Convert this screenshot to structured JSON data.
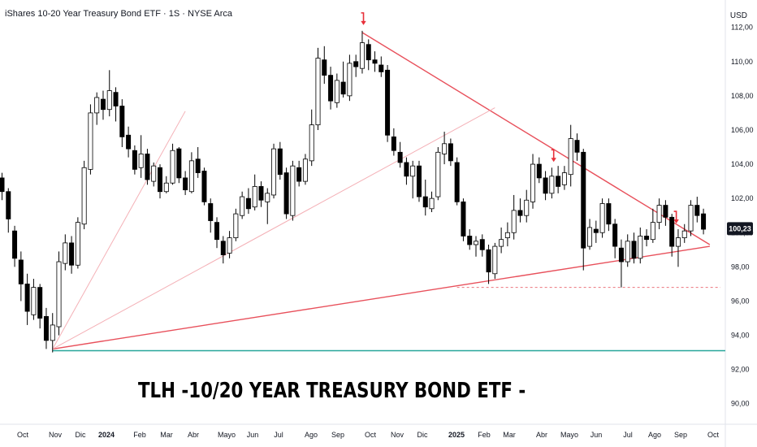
{
  "header": {
    "title": "iShares 10-20 Year Treasury Bond ETF · 1S · NYSE Arca",
    "currency": "USD"
  },
  "caption": "TLH -10/20 YEAR TREASURY BOND ETF -",
  "colors": {
    "up_body": "#ffffff",
    "down_body": "#000000",
    "trend_main": "#e8505b",
    "trend_light": "#f4b0b6",
    "support": "#26a69a",
    "marker": "#e8303a",
    "price_badge": "#131722"
  },
  "chart_data": {
    "type": "candlestick",
    "title": "iShares 10-20 Year Treasury Bond ETF · 1S · NYSE Arca",
    "ylim": [
      88.8,
      113.6
    ],
    "y_ticks": [
      "112,00",
      "110,00",
      "108,00",
      "106,00",
      "104,00",
      "102,00",
      "100,00",
      "98,00",
      "96,00",
      "94,00",
      "92,00",
      "90,00"
    ],
    "x_ticks": [
      {
        "label": "Oct",
        "bold": false
      },
      {
        "label": "Nov",
        "bold": false
      },
      {
        "label": "Dic",
        "bold": false
      },
      {
        "label": "2024",
        "bold": true
      },
      {
        "label": "Feb",
        "bold": false
      },
      {
        "label": "Mar",
        "bold": false
      },
      {
        "label": "Abr",
        "bold": false
      },
      {
        "label": "Mayo",
        "bold": false
      },
      {
        "label": "Jun",
        "bold": false
      },
      {
        "label": "Jul",
        "bold": false
      },
      {
        "label": "Ago",
        "bold": false
      },
      {
        "label": "Sep",
        "bold": false
      },
      {
        "label": "Oct",
        "bold": false
      },
      {
        "label": "Nov",
        "bold": false
      },
      {
        "label": "Dic",
        "bold": false
      },
      {
        "label": "2025",
        "bold": true
      },
      {
        "label": "Feb",
        "bold": false
      },
      {
        "label": "Mar",
        "bold": false
      },
      {
        "label": "Abr",
        "bold": false
      },
      {
        "label": "Mayo",
        "bold": false
      },
      {
        "label": "Jun",
        "bold": false
      },
      {
        "label": "Jul",
        "bold": false
      },
      {
        "label": "Ago",
        "bold": false
      },
      {
        "label": "Sep",
        "bold": false
      },
      {
        "label": "Oct",
        "bold": false
      }
    ],
    "last_price": "100,23",
    "candles": [
      [
        103.2,
        102.4,
        103.5,
        101.9
      ],
      [
        102.4,
        100.8,
        102.6,
        100.0
      ],
      [
        100.1,
        98.5,
        100.4,
        98.0
      ],
      [
        98.4,
        97.0,
        98.9,
        96.0
      ],
      [
        97.0,
        95.4,
        97.6,
        94.6
      ],
      [
        95.2,
        96.8,
        97.3,
        94.9
      ],
      [
        96.8,
        95.0,
        97.0,
        94.4
      ],
      [
        95.1,
        93.7,
        95.6,
        93.2
      ],
      [
        93.7,
        94.6,
        95.3,
        93.0
      ],
      [
        94.5,
        98.3,
        98.9,
        94.0
      ],
      [
        98.2,
        99.4,
        99.9,
        97.8
      ],
      [
        99.4,
        98.1,
        99.8,
        97.6
      ],
      [
        98.1,
        100.6,
        100.9,
        97.9
      ],
      [
        100.5,
        103.8,
        104.2,
        100.2
      ],
      [
        103.7,
        107.0,
        107.5,
        103.4
      ],
      [
        107.0,
        107.9,
        108.2,
        106.3
      ],
      [
        107.8,
        107.2,
        108.3,
        106.6
      ],
      [
        107.2,
        108.3,
        109.5,
        106.8
      ],
      [
        108.2,
        107.4,
        108.5,
        106.5
      ],
      [
        107.4,
        105.6,
        107.8,
        105.0
      ],
      [
        105.7,
        104.9,
        106.2,
        104.4
      ],
      [
        104.8,
        103.7,
        105.1,
        103.4
      ],
      [
        103.8,
        104.6,
        105.7,
        103.2
      ],
      [
        104.6,
        103.1,
        104.9,
        102.8
      ],
      [
        103.0,
        103.9,
        104.1,
        102.7
      ],
      [
        103.8,
        102.4,
        104.0,
        102.0
      ],
      [
        102.4,
        102.9,
        103.3,
        102.3
      ],
      [
        102.9,
        104.8,
        105.2,
        102.8
      ],
      [
        104.9,
        103.2,
        105.0,
        102.9
      ],
      [
        103.2,
        102.5,
        103.6,
        102.2
      ],
      [
        102.4,
        104.2,
        104.7,
        102.3
      ],
      [
        104.3,
        103.5,
        105.0,
        103.2
      ],
      [
        103.6,
        101.8,
        103.8,
        101.6
      ],
      [
        101.7,
        100.7,
        102.0,
        100.0
      ],
      [
        100.6,
        99.6,
        100.9,
        99.1
      ],
      [
        99.5,
        98.7,
        99.8,
        98.2
      ],
      [
        98.8,
        99.7,
        100.1,
        98.5
      ],
      [
        99.7,
        101.1,
        101.4,
        99.5
      ],
      [
        101.0,
        102.1,
        102.4,
        100.8
      ],
      [
        102.0,
        101.4,
        102.6,
        101.1
      ],
      [
        101.5,
        102.7,
        103.4,
        101.3
      ],
      [
        102.7,
        101.9,
        103.0,
        101.5
      ],
      [
        101.8,
        102.3,
        102.6,
        100.5
      ],
      [
        102.2,
        104.9,
        105.2,
        102.0
      ],
      [
        104.9,
        103.4,
        105.3,
        103.1
      ],
      [
        103.5,
        101.1,
        103.8,
        100.8
      ],
      [
        101.0,
        103.9,
        104.2,
        100.7
      ],
      [
        103.8,
        103.0,
        104.2,
        102.7
      ],
      [
        103.0,
        104.3,
        104.6,
        102.8
      ],
      [
        104.2,
        106.3,
        107.2,
        103.9
      ],
      [
        106.3,
        110.2,
        110.8,
        106.0
      ],
      [
        110.1,
        109.2,
        110.9,
        108.7
      ],
      [
        109.2,
        107.7,
        109.7,
        107.2
      ],
      [
        107.6,
        108.9,
        109.3,
        107.3
      ],
      [
        108.8,
        108.1,
        110.0,
        107.9
      ],
      [
        108.0,
        109.9,
        110.4,
        107.7
      ],
      [
        110.0,
        109.7,
        110.4,
        109.1
      ],
      [
        109.6,
        111.1,
        111.8,
        109.3
      ],
      [
        111.0,
        110.1,
        111.3,
        109.5
      ],
      [
        110.1,
        109.9,
        110.6,
        109.4
      ],
      [
        109.8,
        109.4,
        110.3,
        109.1
      ],
      [
        109.5,
        105.7,
        109.8,
        105.3
      ],
      [
        105.6,
        104.8,
        106.1,
        104.5
      ],
      [
        104.7,
        104.1,
        105.3,
        103.8
      ],
      [
        104.1,
        103.3,
        104.4,
        102.8
      ],
      [
        103.3,
        103.9,
        104.2,
        102.0
      ],
      [
        103.9,
        102.1,
        104.2,
        101.8
      ],
      [
        102.1,
        101.5,
        103.1,
        101.0
      ],
      [
        101.4,
        102.0,
        102.4,
        101.2
      ],
      [
        102.1,
        104.7,
        105.0,
        101.9
      ],
      [
        104.6,
        105.2,
        105.9,
        104.0
      ],
      [
        105.2,
        104.2,
        105.5,
        103.9
      ],
      [
        104.1,
        101.8,
        104.4,
        101.6
      ],
      [
        101.8,
        99.8,
        102.0,
        99.5
      ],
      [
        99.8,
        99.3,
        100.2,
        99.0
      ],
      [
        99.3,
        99.5,
        99.8,
        98.6
      ],
      [
        99.6,
        99.0,
        99.9,
        98.6
      ],
      [
        99.0,
        97.7,
        99.3,
        97.0
      ],
      [
        97.6,
        99.2,
        99.4,
        97.3
      ],
      [
        99.2,
        99.6,
        100.3,
        98.8
      ],
      [
        99.7,
        100.0,
        100.6,
        99.2
      ],
      [
        100.0,
        101.3,
        102.2,
        99.6
      ],
      [
        101.3,
        101.0,
        102.0,
        100.6
      ],
      [
        101.0,
        101.9,
        102.5,
        100.6
      ],
      [
        101.8,
        104.0,
        104.6,
        101.4
      ],
      [
        104.0,
        103.2,
        104.4,
        102.9
      ],
      [
        103.2,
        102.3,
        103.6,
        101.9
      ],
      [
        102.3,
        103.3,
        103.8,
        102.0
      ],
      [
        103.3,
        102.7,
        103.9,
        102.3
      ],
      [
        102.8,
        103.5,
        103.9,
        102.5
      ],
      [
        103.4,
        105.5,
        106.3,
        102.7
      ],
      [
        105.4,
        104.7,
        105.8,
        104.2
      ],
      [
        104.7,
        99.1,
        104.9,
        97.8
      ],
      [
        99.2,
        100.3,
        100.8,
        99.0
      ],
      [
        100.2,
        100.0,
        100.7,
        99.4
      ],
      [
        100.0,
        101.7,
        102.0,
        99.7
      ],
      [
        101.7,
        100.5,
        102.0,
        100.1
      ],
      [
        100.5,
        99.2,
        100.8,
        98.5
      ],
      [
        99.1,
        98.3,
        99.6,
        96.8
      ],
      [
        98.3,
        99.5,
        99.9,
        98.0
      ],
      [
        99.5,
        98.5,
        100.0,
        98.2
      ],
      [
        98.5,
        99.8,
        100.3,
        98.2
      ],
      [
        99.8,
        99.6,
        100.2,
        99.2
      ],
      [
        99.6,
        100.6,
        101.4,
        99.4
      ],
      [
        100.6,
        101.6,
        102.0,
        100.2
      ],
      [
        101.6,
        100.9,
        101.9,
        100.4
      ],
      [
        100.9,
        99.2,
        101.1,
        98.6
      ],
      [
        99.2,
        99.7,
        100.2,
        98.0
      ],
      [
        99.7,
        100.1,
        100.5,
        99.4
      ],
      [
        100.1,
        101.6,
        101.9,
        99.8
      ],
      [
        101.6,
        101.0,
        102.1,
        100.6
      ],
      [
        101.1,
        100.2,
        101.4,
        99.9
      ]
    ],
    "trendlines": [
      {
        "x0": 8,
        "y0": 93.2,
        "x1": 112,
        "y1": 99.2,
        "style": "main"
      },
      {
        "x0": 57,
        "y0": 111.7,
        "x1": 112,
        "y1": 99.3,
        "style": "main"
      },
      {
        "x0": 8,
        "y0": 93.2,
        "x1": 78,
        "y1": 107.3,
        "style": "light"
      },
      {
        "x0": 8,
        "y0": 93.2,
        "x1": 29,
        "y1": 107.1,
        "style": "light"
      }
    ],
    "hlines": [
      {
        "y": 93.1,
        "style": "support"
      },
      {
        "y": 96.8,
        "x0": 72,
        "style": "dashed"
      }
    ],
    "markers": [
      57.2,
      87.3,
      106.7
    ]
  }
}
